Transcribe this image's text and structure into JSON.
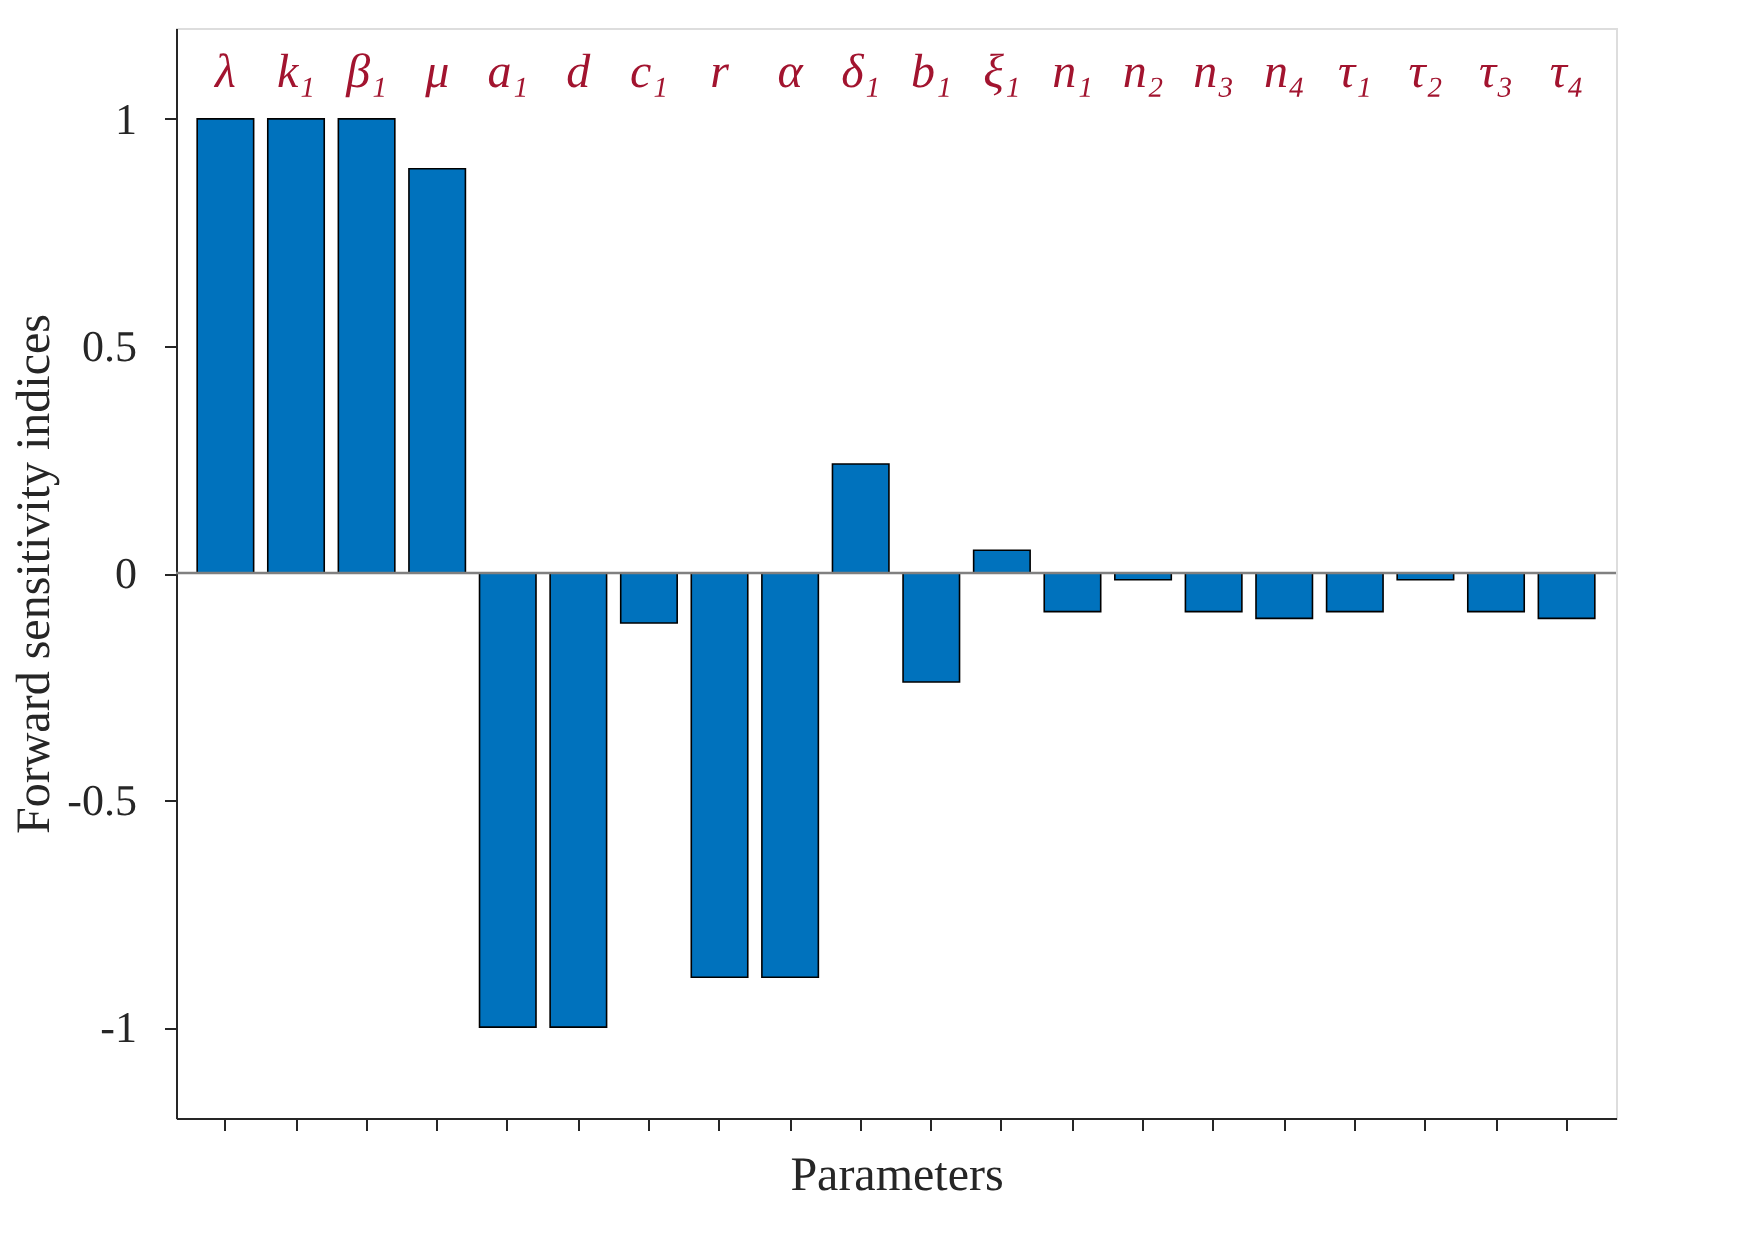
{
  "chart_data": {
    "type": "bar",
    "xlabel": "Parameters",
    "ylabel": "Forward sensitivity indices",
    "categories": [
      "λ",
      "k₁",
      "β₁",
      "μ",
      "a₁",
      "d",
      "c₁",
      "r",
      "α",
      "δ₁",
      "b₁",
      "ξ₁",
      "n₁",
      "n₂",
      "n₃",
      "n₄",
      "τ₁",
      "τ₂",
      "τ₃",
      "τ₄"
    ],
    "values": [
      1,
      1,
      1,
      0.89,
      -1,
      -1,
      -0.11,
      -0.89,
      -0.89,
      0.24,
      -0.24,
      0.05,
      -0.085,
      -0.015,
      -0.085,
      -0.1,
      -0.085,
      -0.015,
      -0.085,
      -0.1
    ],
    "color": "#0072bd",
    "ylim": [
      -1.2,
      1.2
    ],
    "yticks": [
      -1,
      -0.5,
      0,
      0.5,
      1
    ],
    "ref_lines": [
      {
        "axis": "y",
        "value": 0,
        "color": "#808080"
      }
    ],
    "grid": false
  }
}
